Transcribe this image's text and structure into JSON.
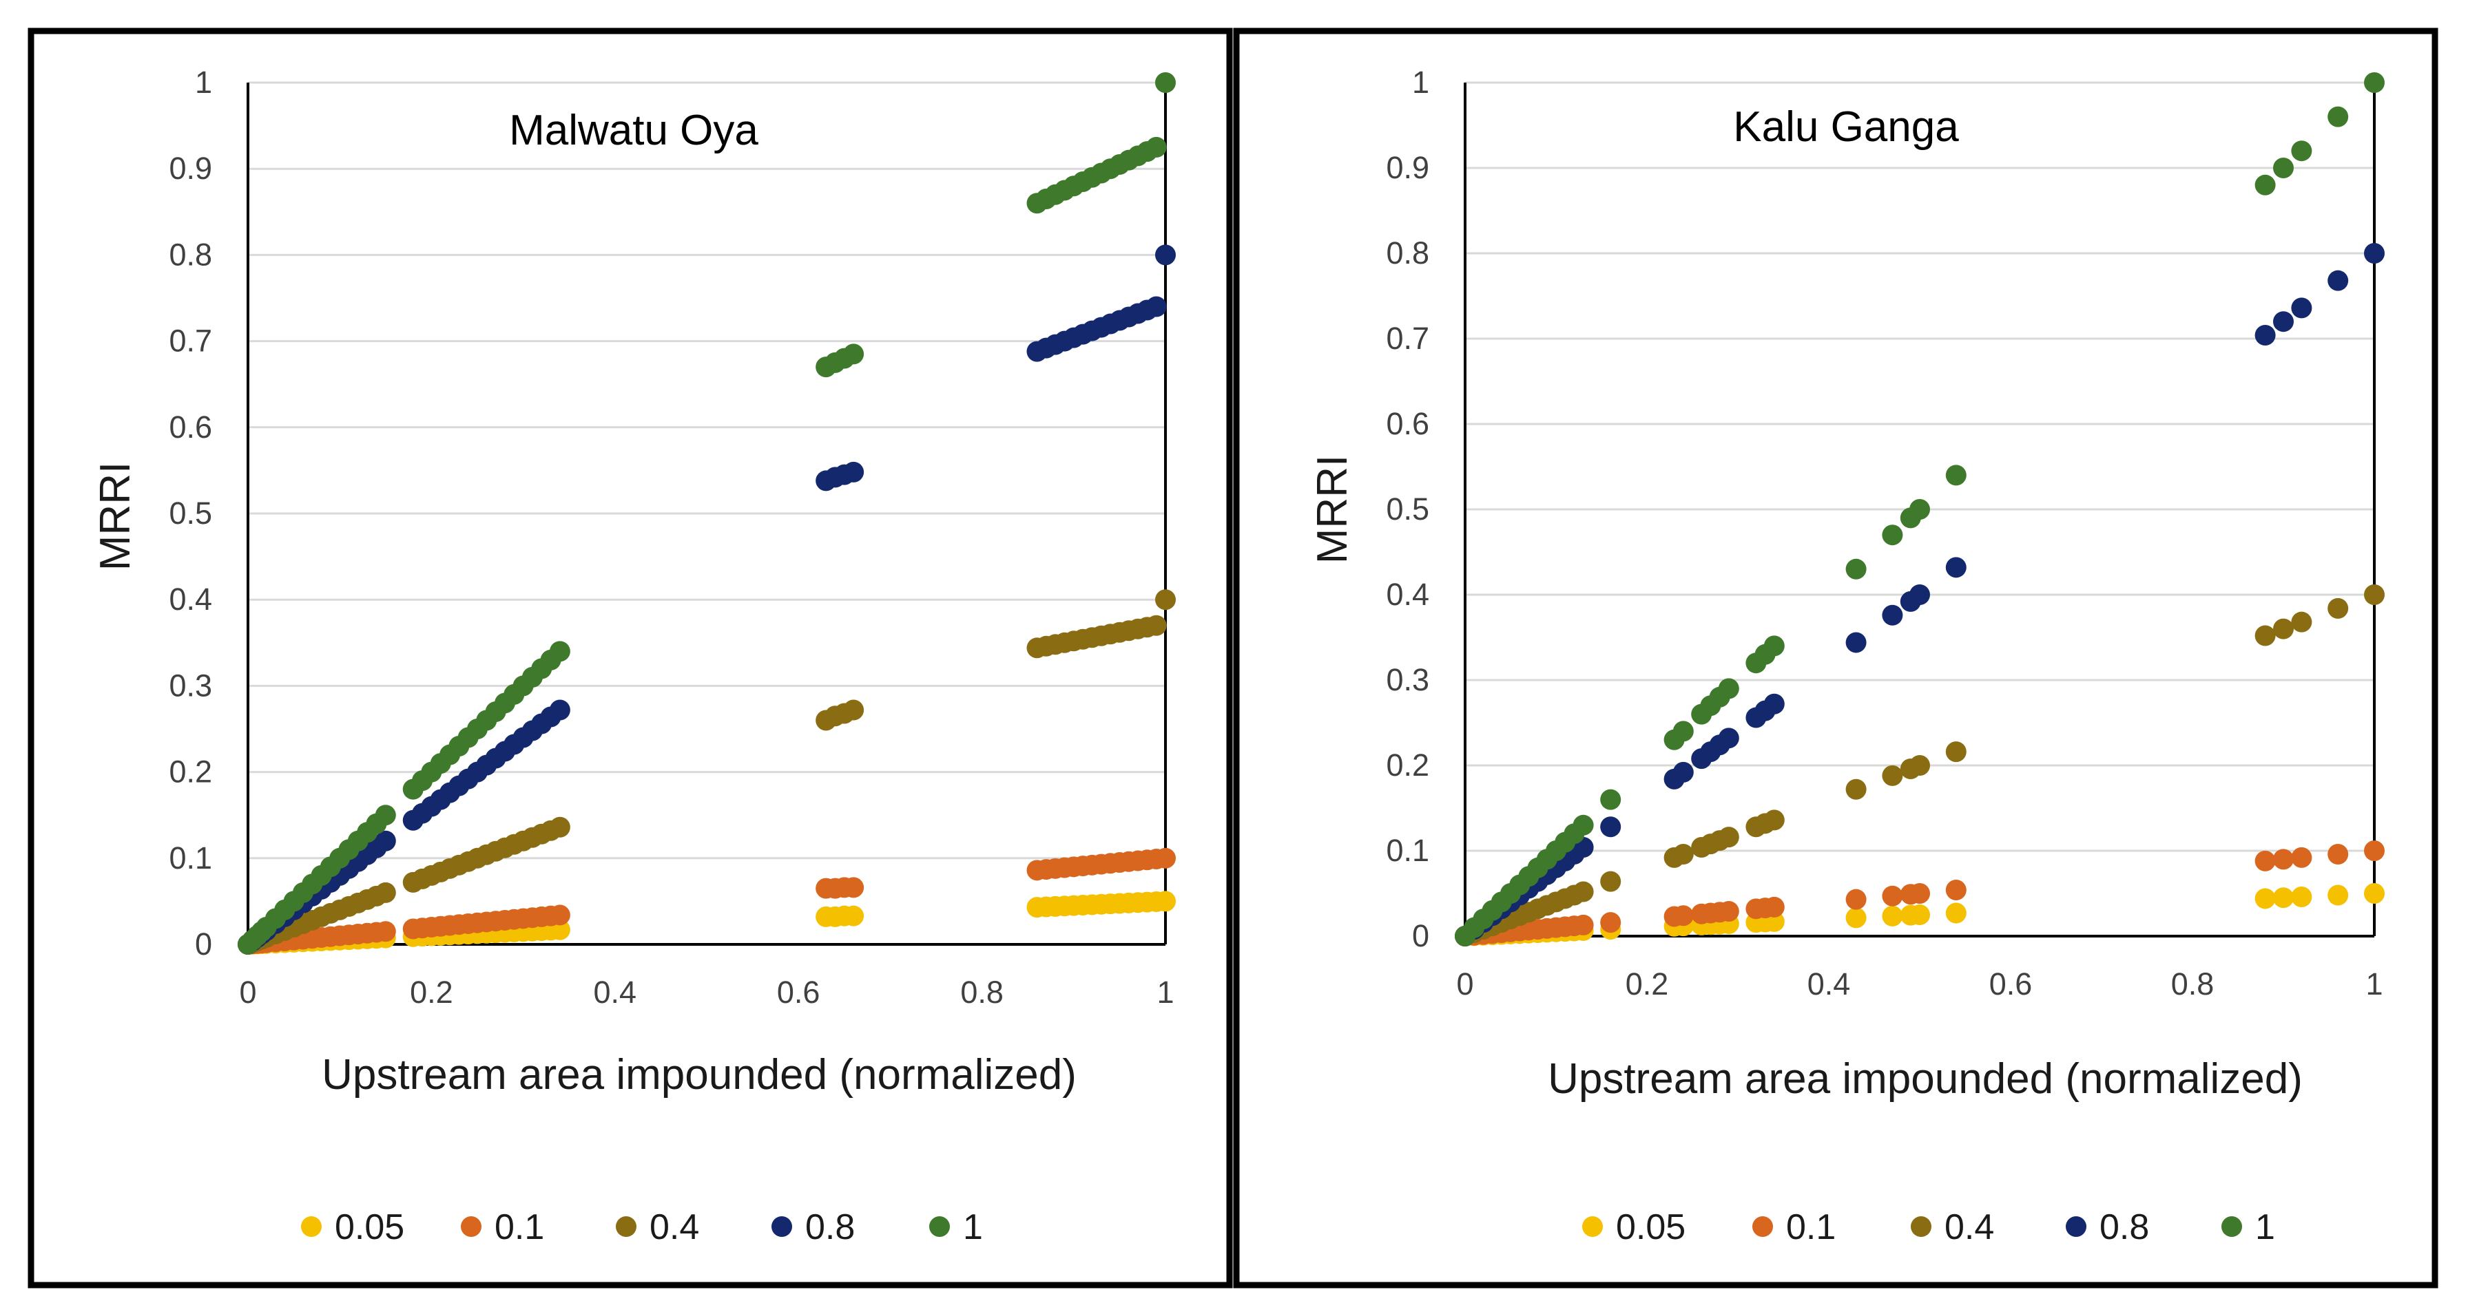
{
  "series_colors": {
    "0.05": "#f5c000",
    "0.1": "#d9661f",
    "0.4": "#8a6d12",
    "0.8": "#14286e",
    "1": "#3f7a2c"
  },
  "chart_data": [
    {
      "type": "scatter",
      "title": "Malwatu Oya",
      "xlabel": "Upstream area impounded (normalized)",
      "ylabel": "MRRI",
      "xlim": [
        0,
        1
      ],
      "ylim": [
        0,
        1
      ],
      "xticks": [
        "0",
        "0.2",
        "0.4",
        "0.6",
        "0.8",
        "1"
      ],
      "yticks": [
        "0",
        "0.1",
        "0.2",
        "0.3",
        "0.4",
        "0.5",
        "0.6",
        "0.7",
        "0.8",
        "0.9",
        "1"
      ],
      "grid": true,
      "legend_position": "bottom",
      "x": [
        0,
        0.005,
        0.01,
        0.015,
        0.02,
        0.03,
        0.04,
        0.05,
        0.06,
        0.07,
        0.08,
        0.09,
        0.1,
        0.11,
        0.12,
        0.13,
        0.14,
        0.15,
        0.18,
        0.19,
        0.2,
        0.21,
        0.22,
        0.23,
        0.24,
        0.25,
        0.26,
        0.27,
        0.28,
        0.29,
        0.3,
        0.31,
        0.32,
        0.33,
        0.34,
        0.63,
        0.64,
        0.65,
        0.66,
        0.86,
        0.87,
        0.88,
        0.89,
        0.9,
        0.91,
        0.92,
        0.93,
        0.94,
        0.95,
        0.96,
        0.97,
        0.98,
        0.99,
        1.0
      ],
      "series": [
        {
          "name": "0.05",
          "values": [
            0,
            0.0003,
            0.0005,
            0.0008,
            0.001,
            0.0015,
            0.002,
            0.0025,
            0.003,
            0.0035,
            0.004,
            0.0045,
            0.005,
            0.0055,
            0.006,
            0.0065,
            0.007,
            0.0075,
            0.009,
            0.0095,
            0.01,
            0.0105,
            0.011,
            0.0115,
            0.012,
            0.0125,
            0.013,
            0.0135,
            0.014,
            0.0145,
            0.015,
            0.0155,
            0.016,
            0.0165,
            0.017,
            0.032,
            0.032,
            0.033,
            0.033,
            0.043,
            0.0435,
            0.044,
            0.0445,
            0.045,
            0.0455,
            0.046,
            0.0465,
            0.047,
            0.0475,
            0.048,
            0.0485,
            0.049,
            0.0495,
            0.05
          ]
        },
        {
          "name": "0.1",
          "values": [
            0,
            0.0005,
            0.001,
            0.0015,
            0.002,
            0.003,
            0.004,
            0.005,
            0.006,
            0.007,
            0.008,
            0.009,
            0.01,
            0.011,
            0.012,
            0.013,
            0.014,
            0.015,
            0.018,
            0.019,
            0.02,
            0.021,
            0.022,
            0.023,
            0.024,
            0.025,
            0.026,
            0.027,
            0.028,
            0.029,
            0.03,
            0.031,
            0.032,
            0.033,
            0.034,
            0.065,
            0.065,
            0.066,
            0.066,
            0.086,
            0.087,
            0.088,
            0.089,
            0.09,
            0.091,
            0.092,
            0.093,
            0.094,
            0.095,
            0.096,
            0.097,
            0.098,
            0.099,
            0.1
          ]
        },
        {
          "name": "0.4",
          "values": [
            0,
            0.002,
            0.004,
            0.006,
            0.008,
            0.012,
            0.016,
            0.02,
            0.024,
            0.028,
            0.032,
            0.036,
            0.04,
            0.044,
            0.048,
            0.052,
            0.056,
            0.06,
            0.072,
            0.076,
            0.08,
            0.084,
            0.088,
            0.092,
            0.096,
            0.1,
            0.104,
            0.108,
            0.112,
            0.116,
            0.12,
            0.124,
            0.128,
            0.132,
            0.136,
            0.26,
            0.265,
            0.268,
            0.272,
            0.344,
            0.346,
            0.348,
            0.35,
            0.352,
            0.354,
            0.356,
            0.358,
            0.36,
            0.362,
            0.364,
            0.366,
            0.368,
            0.37,
            0.4
          ]
        },
        {
          "name": "0.8",
          "values": [
            0,
            0.004,
            0.008,
            0.012,
            0.016,
            0.024,
            0.032,
            0.04,
            0.048,
            0.056,
            0.064,
            0.072,
            0.08,
            0.088,
            0.096,
            0.104,
            0.112,
            0.12,
            0.144,
            0.152,
            0.16,
            0.168,
            0.176,
            0.184,
            0.192,
            0.2,
            0.208,
            0.216,
            0.224,
            0.232,
            0.24,
            0.248,
            0.256,
            0.264,
            0.272,
            0.538,
            0.542,
            0.545,
            0.548,
            0.688,
            0.692,
            0.696,
            0.7,
            0.704,
            0.708,
            0.712,
            0.716,
            0.72,
            0.724,
            0.728,
            0.732,
            0.736,
            0.74,
            0.8
          ]
        },
        {
          "name": "1",
          "values": [
            0,
            0.005,
            0.01,
            0.015,
            0.02,
            0.03,
            0.04,
            0.05,
            0.06,
            0.07,
            0.08,
            0.09,
            0.1,
            0.11,
            0.12,
            0.13,
            0.14,
            0.15,
            0.18,
            0.19,
            0.2,
            0.21,
            0.22,
            0.23,
            0.24,
            0.25,
            0.26,
            0.27,
            0.28,
            0.29,
            0.3,
            0.31,
            0.32,
            0.33,
            0.34,
            0.67,
            0.675,
            0.68,
            0.685,
            0.86,
            0.865,
            0.87,
            0.875,
            0.88,
            0.885,
            0.89,
            0.895,
            0.9,
            0.905,
            0.91,
            0.915,
            0.92,
            0.925,
            1.0
          ]
        }
      ]
    },
    {
      "type": "scatter",
      "title": "Kalu Ganga",
      "xlabel": "Upstream area impounded (normalized)",
      "ylabel": "MRRI",
      "xlim": [
        0,
        1
      ],
      "ylim": [
        0,
        1
      ],
      "xticks": [
        "0",
        "0.2",
        "0.4",
        "0.6",
        "0.8",
        "1"
      ],
      "yticks": [
        "0",
        "0.1",
        "0.2",
        "0.3",
        "0.4",
        "0.5",
        "0.6",
        "0.7",
        "0.8",
        "0.9",
        "1"
      ],
      "grid": true,
      "legend_position": "bottom",
      "x": [
        0,
        0.01,
        0.02,
        0.03,
        0.04,
        0.05,
        0.06,
        0.07,
        0.08,
        0.09,
        0.1,
        0.11,
        0.12,
        0.13,
        0.16,
        0.23,
        0.24,
        0.26,
        0.27,
        0.28,
        0.29,
        0.32,
        0.33,
        0.34,
        0.43,
        0.47,
        0.49,
        0.5,
        0.54,
        0.88,
        0.9,
        0.92,
        0.96,
        1.0
      ],
      "series": [
        {
          "name": "0.05",
          "values": [
            0,
            0.0005,
            0.001,
            0.0015,
            0.002,
            0.0025,
            0.003,
            0.0035,
            0.004,
            0.0045,
            0.005,
            0.0055,
            0.006,
            0.0065,
            0.008,
            0.0115,
            0.012,
            0.013,
            0.0135,
            0.014,
            0.0145,
            0.016,
            0.0165,
            0.017,
            0.0215,
            0.0235,
            0.0245,
            0.025,
            0.027,
            0.044,
            0.045,
            0.046,
            0.048,
            0.05
          ]
        },
        {
          "name": "0.1",
          "values": [
            0,
            0.001,
            0.002,
            0.003,
            0.004,
            0.005,
            0.006,
            0.007,
            0.008,
            0.009,
            0.01,
            0.011,
            0.012,
            0.013,
            0.016,
            0.023,
            0.024,
            0.026,
            0.027,
            0.028,
            0.029,
            0.032,
            0.033,
            0.034,
            0.043,
            0.047,
            0.049,
            0.05,
            0.054,
            0.088,
            0.09,
            0.092,
            0.096,
            0.1
          ]
        },
        {
          "name": "0.4",
          "values": [
            0,
            0.004,
            0.008,
            0.012,
            0.016,
            0.02,
            0.024,
            0.028,
            0.032,
            0.036,
            0.04,
            0.044,
            0.048,
            0.052,
            0.064,
            0.092,
            0.096,
            0.104,
            0.108,
            0.112,
            0.116,
            0.128,
            0.132,
            0.136,
            0.172,
            0.188,
            0.196,
            0.2,
            0.216,
            0.352,
            0.36,
            0.368,
            0.384,
            0.4
          ]
        },
        {
          "name": "0.8",
          "values": [
            0,
            0.008,
            0.016,
            0.024,
            0.032,
            0.04,
            0.048,
            0.056,
            0.064,
            0.072,
            0.08,
            0.088,
            0.096,
            0.104,
            0.128,
            0.184,
            0.192,
            0.208,
            0.216,
            0.224,
            0.232,
            0.256,
            0.264,
            0.272,
            0.344,
            0.376,
            0.392,
            0.4,
            0.432,
            0.704,
            0.72,
            0.736,
            0.768,
            0.8
          ]
        },
        {
          "name": "1",
          "values": [
            0,
            0.01,
            0.02,
            0.03,
            0.04,
            0.05,
            0.06,
            0.07,
            0.08,
            0.09,
            0.1,
            0.11,
            0.12,
            0.13,
            0.16,
            0.23,
            0.24,
            0.26,
            0.27,
            0.28,
            0.29,
            0.32,
            0.33,
            0.34,
            0.43,
            0.47,
            0.49,
            0.5,
            0.54,
            0.88,
            0.9,
            0.92,
            0.96,
            1.0
          ]
        }
      ]
    }
  ]
}
